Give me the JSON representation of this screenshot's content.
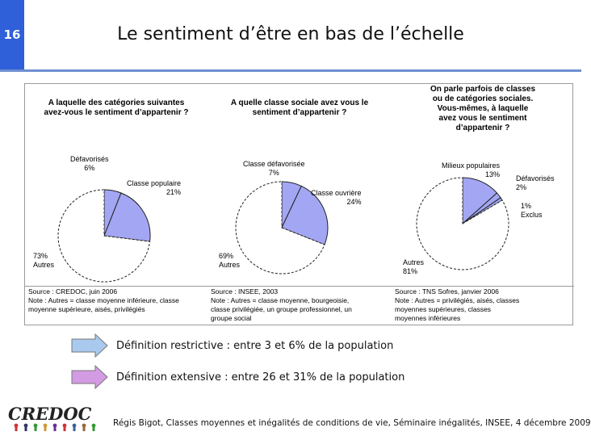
{
  "slide": {
    "number": "16",
    "title": "Le sentiment d’être en bas de l’échelle"
  },
  "colors": {
    "accent": "#2f5fd9",
    "pie_highlight": "#a3a6f2",
    "arrow_blue": "#a9c9ef",
    "arrow_purple": "#d39be3"
  },
  "panels": [
    {
      "question": "A laquelle des catégories suivantes\navez-vous le sentiment d’appartenir ?",
      "labels": {
        "a": "Défavorisés\n6%",
        "b": "Classe populaire\n21%",
        "c": "73%\nAutres"
      },
      "source": "Source : CREDOC, juin 2006\nNote : Autres = classe moyenne inférieure, classe\nmoyenne supérieure, aisés, privilégiés"
    },
    {
      "question": "A quelle classe sociale avez vous le\nsentiment d’appartenir ?",
      "labels": {
        "a": "Classe défavorisée\n7%",
        "b": "Classe ouvrière\n24%",
        "c": "69%\nAutres"
      },
      "source": "Source : INSEE, 2003\nNote : Autres = classe moyenne, bourgeoisie,\nclasse privilégiée, un groupe professionnel, un\ngroupe social"
    },
    {
      "question": "On parle parfois de classes\nou de catégories sociales.\nVous-mêmes, à laquelle\navez vous le sentiment\nd’appartenir ?",
      "labels": {
        "a": "Milieux populaires\n13%",
        "b": "Défavorisés\n2%",
        "c": "1%\nExclus",
        "d": "Autres\n81%"
      },
      "source": "Source : TNS Sofres, janvier 2006\nNote : Autres = privilégiés, aisés, classes\nmoyennes supérieures, classes\nmoyennes inférieures"
    }
  ],
  "chart_data": [
    {
      "type": "pie",
      "title": "A laquelle des catégories suivantes avez-vous le sentiment d’appartenir ?",
      "categories": [
        "Défavorisés",
        "Classe populaire",
        "Autres"
      ],
      "values": [
        6,
        21,
        73
      ]
    },
    {
      "type": "pie",
      "title": "A quelle classe sociale avez vous le sentiment d’appartenir ?",
      "categories": [
        "Classe défavorisée",
        "Classe ouvrière",
        "Autres"
      ],
      "values": [
        7,
        24,
        69
      ]
    },
    {
      "type": "pie",
      "title": "On parle parfois de classes ou de catégories sociales. Vous-mêmes, à laquelle avez vous le sentiment d’appartenir ?",
      "categories": [
        "Milieux populaires",
        "Défavorisés",
        "Exclus",
        "Autres"
      ],
      "values": [
        13,
        2,
        1,
        81
      ]
    }
  ],
  "legend": {
    "restrictive": "Définition restrictive : entre 3 et 6% de la population",
    "extensive": "Définition extensive : entre 26 et 31% de la population"
  },
  "logo": {
    "text": "CREDOC"
  },
  "footer": "Régis Bigot, Classes moyennes et inégalités de conditions de vie, Séminaire inégalités, INSEE, 4 décembre 2009"
}
